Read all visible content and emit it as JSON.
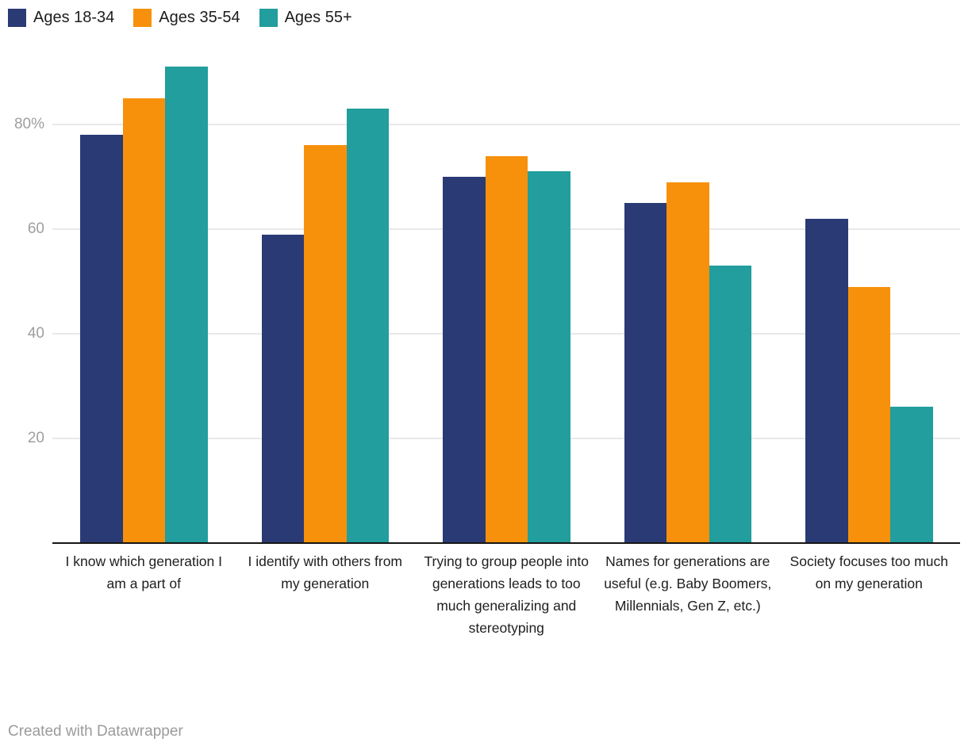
{
  "legend": {
    "items": [
      {
        "label": "Ages 18-34",
        "color": "#2a3a74"
      },
      {
        "label": "Ages 35-54",
        "color": "#f7910b"
      },
      {
        "label": "Ages 55+",
        "color": "#219e9d"
      }
    ]
  },
  "chart_data": {
    "type": "bar",
    "grouped": true,
    "title": "",
    "xlabel": "",
    "ylabel": "",
    "categories": [
      "I know which generation I am a part of",
      "I identify with others from my generation",
      "Trying to group people into generations leads to too much generalizing and stereotyping",
      "Names for generations are useful (e.g. Baby Boomers, Millennials, Gen Z, etc.)",
      "Society focuses too much on my generation"
    ],
    "series": [
      {
        "name": "Ages 18-34",
        "color": "#2a3a74",
        "values": [
          78,
          59,
          70,
          65,
          62
        ]
      },
      {
        "name": "Ages 35-54",
        "color": "#f7910b",
        "values": [
          85,
          76,
          74,
          69,
          49
        ]
      },
      {
        "name": "Ages 55+",
        "color": "#219e9d",
        "values": [
          91,
          83,
          71,
          53,
          26
        ]
      }
    ],
    "yticks": [
      {
        "value": 20,
        "label": "20"
      },
      {
        "value": 40,
        "label": "40"
      },
      {
        "value": 60,
        "label": "60"
      },
      {
        "value": 80,
        "label": "80%"
      }
    ],
    "ylim": [
      0,
      93
    ],
    "grid": true,
    "legend_position": "top-left"
  },
  "colors": {
    "grid": "#e8e8e8",
    "axis": "#161616",
    "tick_label": "#9e9e9e",
    "category_label": "#202020",
    "legend_text": "#1d1d1d",
    "footer_text": "#9b9b9b",
    "background": "#ffffff"
  },
  "footer": {
    "credit": "Created with Datawrapper"
  }
}
